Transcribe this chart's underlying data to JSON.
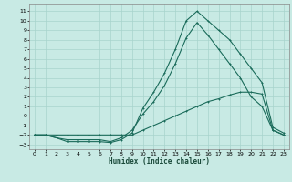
{
  "xlabel": "Humidex (Indice chaleur)",
  "background_color": "#c8eae4",
  "grid_color": "#a8d4cc",
  "line_color": "#1a6b5a",
  "xlim": [
    -0.5,
    23.5
  ],
  "ylim": [
    -3.5,
    11.8
  ],
  "yticks": [
    -3,
    -2,
    -1,
    0,
    1,
    2,
    3,
    4,
    5,
    6,
    7,
    8,
    9,
    10,
    11
  ],
  "xticks": [
    0,
    1,
    2,
    3,
    4,
    5,
    6,
    7,
    8,
    9,
    10,
    11,
    12,
    13,
    14,
    15,
    16,
    17,
    18,
    19,
    20,
    21,
    22,
    23
  ],
  "line1_x": [
    0,
    1,
    2,
    3,
    4,
    5,
    6,
    7,
    8,
    9,
    10,
    11,
    12,
    13,
    14,
    15,
    16,
    17,
    18,
    19,
    20,
    21,
    22,
    23
  ],
  "line1_y": [
    -2.0,
    -2.0,
    -2.3,
    -2.7,
    -2.7,
    -2.7,
    -2.7,
    -2.8,
    -2.5,
    -1.8,
    0.8,
    2.5,
    4.5,
    7.0,
    10.0,
    11.0,
    10.0,
    9.0,
    8.0,
    6.5,
    5.0,
    3.5,
    -1.2,
    -1.8
  ],
  "line2_x": [
    0,
    1,
    2,
    3,
    4,
    5,
    6,
    7,
    8,
    9,
    10,
    11,
    12,
    13,
    14,
    15,
    16,
    17,
    18,
    19,
    20,
    21,
    22,
    23
  ],
  "line2_y": [
    -2.0,
    -2.0,
    -2.3,
    -2.5,
    -2.5,
    -2.5,
    -2.5,
    -2.7,
    -2.3,
    -1.5,
    0.2,
    1.5,
    3.2,
    5.5,
    8.2,
    9.8,
    8.5,
    7.0,
    5.5,
    4.0,
    2.0,
    1.0,
    -1.5,
    -2.0
  ],
  "line3_x": [
    0,
    1,
    2,
    3,
    4,
    5,
    6,
    7,
    8,
    9,
    10,
    11,
    12,
    13,
    14,
    15,
    16,
    17,
    18,
    19,
    20,
    21,
    22,
    23
  ],
  "line3_y": [
    -2.0,
    -2.0,
    -2.0,
    -2.0,
    -2.0,
    -2.0,
    -2.0,
    -2.0,
    -2.0,
    -2.0,
    -1.5,
    -1.0,
    -0.5,
    0.0,
    0.5,
    1.0,
    1.5,
    1.8,
    2.2,
    2.5,
    2.5,
    2.3,
    -1.5,
    -2.0
  ]
}
